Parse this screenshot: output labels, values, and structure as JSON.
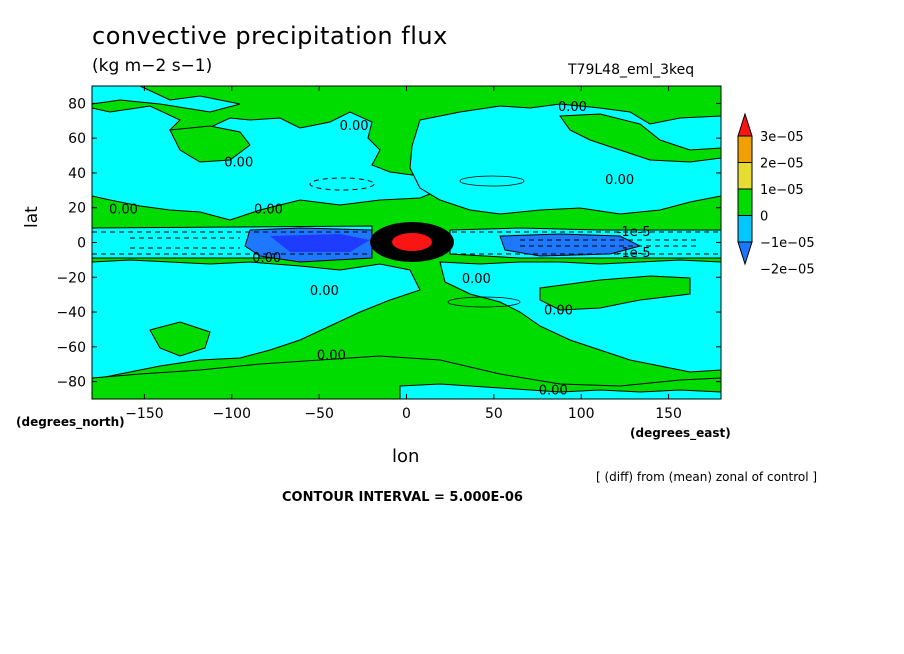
{
  "chart_data": {
    "type": "contour",
    "title": "convective precipitation flux",
    "units": "(kg m−2 s−1)",
    "run_id": "T79L48_eml_3keq",
    "xlabel": "lon",
    "ylabel": "lat",
    "x_units": "(degrees_east)",
    "y_units": "(degrees_north)",
    "xlim": [
      -180,
      180
    ],
    "ylim": [
      -90,
      90
    ],
    "x_ticks": [
      -150,
      -100,
      -50,
      0,
      50,
      100,
      150
    ],
    "y_ticks": [
      -80,
      -60,
      -40,
      -20,
      0,
      20,
      40,
      60,
      80
    ],
    "x_tick_labels": [
      "−150",
      "−100",
      "−50",
      "0",
      "50",
      "100",
      "150"
    ],
    "y_tick_labels": [
      "−80",
      "−60",
      "−40",
      "−20",
      "0",
      "20",
      "40",
      "60",
      "80"
    ],
    "note": "[ (diff) from (mean) zonal of control ]",
    "contour_interval": "CONTOUR INTERVAL = 5.000E-06",
    "contour_labels": [
      {
        "text": "0.00",
        "lon": -30,
        "lat": 67
      },
      {
        "text": "0.00",
        "lon": 95,
        "lat": 78
      },
      {
        "text": "0.00",
        "lon": -96,
        "lat": 46
      },
      {
        "text": "0.00",
        "lon": 122,
        "lat": 36
      },
      {
        "text": "0.00",
        "lon": -162,
        "lat": 19
      },
      {
        "text": "0.00",
        "lon": -79,
        "lat": 19
      },
      {
        "text": "0.00",
        "lon": -80,
        "lat": -9
      },
      {
        "text": "0.00",
        "lon": 40,
        "lat": -21
      },
      {
        "text": "0.00",
        "lon": -47,
        "lat": -28
      },
      {
        "text": "0.00",
        "lon": 87,
        "lat": -39
      },
      {
        "text": "0.00",
        "lon": -43,
        "lat": -65
      },
      {
        "text": "0.00",
        "lon": 84,
        "lat": -85
      },
      {
        "text": "-1e-5",
        "lon": 130,
        "lat": 6
      },
      {
        "text": "-1e-5",
        "lon": 130,
        "lat": -6
      }
    ],
    "colorbar": {
      "levels": [
        "−2e−05",
        "−1e−05",
        "0",
        "1e−05",
        "2e−05",
        "3e−05"
      ],
      "colors": [
        "#1e78ff",
        "#00c8ff",
        "#00dc00",
        "#e6dc32",
        "#f0a000",
        "#fa1414"
      ],
      "over_color": "#fa1414",
      "under_color": "#1e78ff"
    },
    "colors": {
      "positive_band": "#00dc00",
      "negative_band": "#00ffff",
      "strong_negative": "#1e78ff",
      "deep_negative": "#1e3cff",
      "strong_positive": "#fa1414",
      "contour_line": "#000000"
    }
  }
}
